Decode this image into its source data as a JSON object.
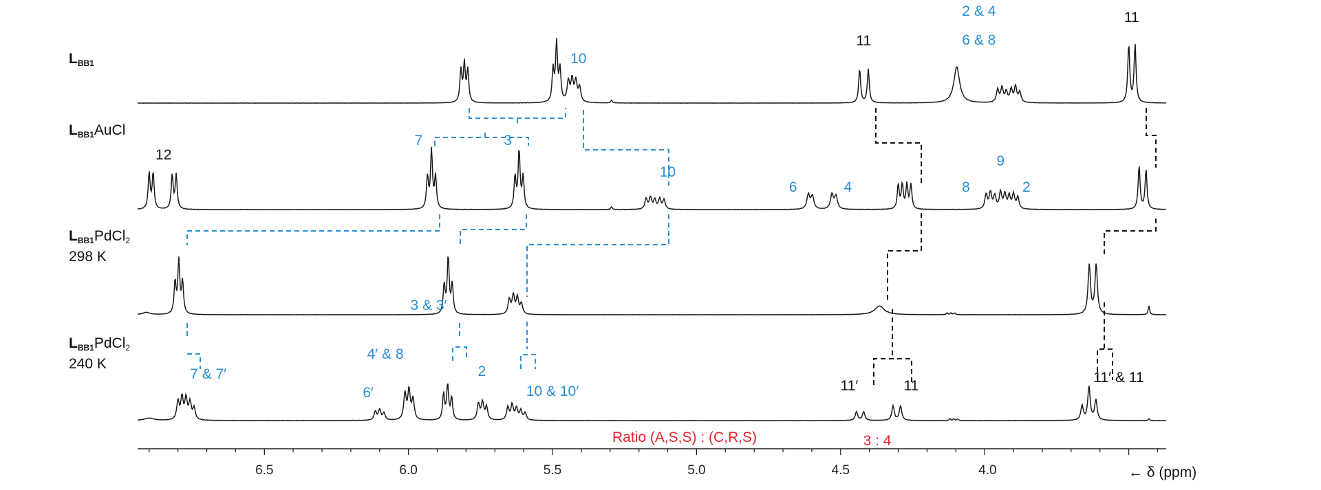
{
  "chart_data": {
    "type": "line",
    "title": "",
    "xlabel": "← δ (ppm)",
    "ylabel": "",
    "x_reversed": true,
    "xlim": [
      6.94,
      3.37
    ],
    "x_ticks": [
      "6.5",
      "6.0",
      "5.5",
      "5.0",
      "4.5",
      "4.0"
    ],
    "x_tick_values": [
      6.5,
      6.0,
      5.5,
      5.0,
      4.5,
      3.99
    ],
    "colors": {
      "trace": "#1a1a1a",
      "blue": "#2a8fd6",
      "black": "#111111",
      "red": "#e2242d"
    },
    "series": [
      {
        "name": "LBB1",
        "label_bold": "L",
        "label_sub": "BB1",
        "label_rest": "",
        "label_sub2": "",
        "label_temp": "",
        "peaks": [
          {
            "ppm": 5.818,
            "h": 0.55,
            "w": 0.004
          },
          {
            "ppm": 5.806,
            "h": 0.65,
            "w": 0.004
          },
          {
            "ppm": 5.794,
            "h": 0.55,
            "w": 0.004
          },
          {
            "ppm": 5.498,
            "h": 0.55,
            "w": 0.004
          },
          {
            "ppm": 5.486,
            "h": 1.0,
            "w": 0.004
          },
          {
            "ppm": 5.474,
            "h": 0.55,
            "w": 0.004
          },
          {
            "ppm": 5.445,
            "h": 0.35,
            "w": 0.005
          },
          {
            "ppm": 5.432,
            "h": 0.38,
            "w": 0.005
          },
          {
            "ppm": 5.419,
            "h": 0.35,
            "w": 0.005
          },
          {
            "ppm": 5.406,
            "h": 0.25,
            "w": 0.005
          },
          {
            "ppm": 5.295,
            "h": 0.05,
            "w": 0.003
          },
          {
            "ppm": 4.434,
            "h": 0.58,
            "w": 0.004
          },
          {
            "ppm": 4.404,
            "h": 0.58,
            "w": 0.004
          },
          {
            "ppm": 4.097,
            "h": 0.62,
            "w": 0.012
          },
          {
            "ppm": 3.955,
            "h": 0.22,
            "w": 0.005
          },
          {
            "ppm": 3.94,
            "h": 0.25,
            "w": 0.005
          },
          {
            "ppm": 3.925,
            "h": 0.18,
            "w": 0.005
          },
          {
            "ppm": 3.908,
            "h": 0.22,
            "w": 0.005
          },
          {
            "ppm": 3.893,
            "h": 0.27,
            "w": 0.005
          },
          {
            "ppm": 3.878,
            "h": 0.18,
            "w": 0.005
          },
          {
            "ppm": 3.5,
            "h": 1.0,
            "w": 0.004
          },
          {
            "ppm": 3.478,
            "h": 1.0,
            "w": 0.004
          }
        ]
      },
      {
        "name": "LBB1AuCl",
        "label_bold": "L",
        "label_sub": "BB1",
        "label_rest": "AuCl",
        "label_sub2": "",
        "label_temp": "",
        "peaks": [
          {
            "ppm": 6.9,
            "h": 0.62,
            "w": 0.004
          },
          {
            "ppm": 6.886,
            "h": 0.62,
            "w": 0.004
          },
          {
            "ppm": 6.82,
            "h": 0.58,
            "w": 0.004
          },
          {
            "ppm": 6.806,
            "h": 0.58,
            "w": 0.004
          },
          {
            "ppm": 5.934,
            "h": 0.55,
            "w": 0.004
          },
          {
            "ppm": 5.92,
            "h": 1.0,
            "w": 0.004
          },
          {
            "ppm": 5.906,
            "h": 0.55,
            "w": 0.004
          },
          {
            "ppm": 5.63,
            "h": 0.55,
            "w": 0.004
          },
          {
            "ppm": 5.616,
            "h": 1.0,
            "w": 0.004
          },
          {
            "ppm": 5.602,
            "h": 0.55,
            "w": 0.004
          },
          {
            "ppm": 5.295,
            "h": 0.05,
            "w": 0.003
          },
          {
            "ppm": 5.175,
            "h": 0.18,
            "w": 0.005
          },
          {
            "ppm": 5.16,
            "h": 0.2,
            "w": 0.005
          },
          {
            "ppm": 5.145,
            "h": 0.16,
            "w": 0.005
          },
          {
            "ppm": 5.128,
            "h": 0.18,
            "w": 0.005
          },
          {
            "ppm": 5.113,
            "h": 0.16,
            "w": 0.005
          },
          {
            "ppm": 4.612,
            "h": 0.25,
            "w": 0.006
          },
          {
            "ppm": 4.598,
            "h": 0.22,
            "w": 0.006
          },
          {
            "ppm": 4.53,
            "h": 0.25,
            "w": 0.006
          },
          {
            "ppm": 4.516,
            "h": 0.22,
            "w": 0.006
          },
          {
            "ppm": 4.3,
            "h": 0.42,
            "w": 0.004
          },
          {
            "ppm": 4.286,
            "h": 0.42,
            "w": 0.004
          },
          {
            "ppm": 4.27,
            "h": 0.42,
            "w": 0.004
          },
          {
            "ppm": 4.256,
            "h": 0.42,
            "w": 0.004
          },
          {
            "ppm": 3.995,
            "h": 0.25,
            "w": 0.005
          },
          {
            "ppm": 3.98,
            "h": 0.28,
            "w": 0.005
          },
          {
            "ppm": 3.965,
            "h": 0.22,
            "w": 0.005
          },
          {
            "ppm": 3.945,
            "h": 0.28,
            "w": 0.005
          },
          {
            "ppm": 3.93,
            "h": 0.25,
            "w": 0.005
          },
          {
            "ppm": 3.915,
            "h": 0.22,
            "w": 0.005
          },
          {
            "ppm": 3.9,
            "h": 0.25,
            "w": 0.005
          },
          {
            "ppm": 3.885,
            "h": 0.2,
            "w": 0.005
          },
          {
            "ppm": 3.464,
            "h": 0.75,
            "w": 0.004
          },
          {
            "ppm": 3.44,
            "h": 0.68,
            "w": 0.004
          }
        ]
      },
      {
        "name": "LBB1PdCl2 298 K",
        "label_bold": "L",
        "label_sub": "BB1",
        "label_rest": "PdCl",
        "label_sub2": "2",
        "label_temp": "298 K",
        "peaks": [
          {
            "ppm": 6.91,
            "h": 0.04,
            "w": 0.015
          },
          {
            "ppm": 6.81,
            "h": 0.55,
            "w": 0.004
          },
          {
            "ppm": 6.797,
            "h": 0.9,
            "w": 0.004
          },
          {
            "ppm": 6.784,
            "h": 0.55,
            "w": 0.004
          },
          {
            "ppm": 5.876,
            "h": 0.5,
            "w": 0.004
          },
          {
            "ppm": 5.862,
            "h": 0.98,
            "w": 0.004
          },
          {
            "ppm": 5.848,
            "h": 0.5,
            "w": 0.004
          },
          {
            "ppm": 5.65,
            "h": 0.25,
            "w": 0.005
          },
          {
            "ppm": 5.636,
            "h": 0.32,
            "w": 0.005
          },
          {
            "ppm": 5.622,
            "h": 0.28,
            "w": 0.005
          },
          {
            "ppm": 5.608,
            "h": 0.18,
            "w": 0.005
          },
          {
            "ppm": 4.365,
            "h": 0.15,
            "w": 0.02
          },
          {
            "ppm": 4.13,
            "h": 0.03,
            "w": 0.003
          },
          {
            "ppm": 4.117,
            "h": 0.03,
            "w": 0.003
          },
          {
            "ppm": 4.104,
            "h": 0.03,
            "w": 0.003
          },
          {
            "ppm": 3.637,
            "h": 0.85,
            "w": 0.005
          },
          {
            "ppm": 3.613,
            "h": 0.85,
            "w": 0.005
          },
          {
            "ppm": 3.43,
            "h": 0.15,
            "w": 0.003
          }
        ]
      },
      {
        "name": "LBB1PdCl2 240 K",
        "label_bold": "L",
        "label_sub": "BB1",
        "label_rest": "PdCl",
        "label_sub2": "2",
        "label_temp": "240 K",
        "peaks": [
          {
            "ppm": 6.9,
            "h": 0.04,
            "w": 0.02
          },
          {
            "ppm": 6.8,
            "h": 0.32,
            "w": 0.005
          },
          {
            "ppm": 6.786,
            "h": 0.38,
            "w": 0.005
          },
          {
            "ppm": 6.772,
            "h": 0.36,
            "w": 0.005
          },
          {
            "ppm": 6.758,
            "h": 0.3,
            "w": 0.005
          },
          {
            "ppm": 6.744,
            "h": 0.2,
            "w": 0.005
          },
          {
            "ppm": 6.115,
            "h": 0.15,
            "w": 0.005
          },
          {
            "ppm": 6.1,
            "h": 0.18,
            "w": 0.005
          },
          {
            "ppm": 6.085,
            "h": 0.12,
            "w": 0.005
          },
          {
            "ppm": 6.012,
            "h": 0.45,
            "w": 0.005
          },
          {
            "ppm": 5.998,
            "h": 0.5,
            "w": 0.005
          },
          {
            "ppm": 5.984,
            "h": 0.35,
            "w": 0.005
          },
          {
            "ppm": 5.878,
            "h": 0.45,
            "w": 0.004
          },
          {
            "ppm": 5.864,
            "h": 0.6,
            "w": 0.004
          },
          {
            "ppm": 5.85,
            "h": 0.38,
            "w": 0.004
          },
          {
            "ppm": 5.757,
            "h": 0.28,
            "w": 0.005
          },
          {
            "ppm": 5.743,
            "h": 0.3,
            "w": 0.005
          },
          {
            "ppm": 5.729,
            "h": 0.22,
            "w": 0.005
          },
          {
            "ppm": 5.655,
            "h": 0.22,
            "w": 0.005
          },
          {
            "ppm": 5.64,
            "h": 0.26,
            "w": 0.005
          },
          {
            "ppm": 5.625,
            "h": 0.2,
            "w": 0.005
          },
          {
            "ppm": 5.61,
            "h": 0.16,
            "w": 0.005
          },
          {
            "ppm": 5.595,
            "h": 0.12,
            "w": 0.005
          },
          {
            "ppm": 4.445,
            "h": 0.15,
            "w": 0.005
          },
          {
            "ppm": 4.42,
            "h": 0.15,
            "w": 0.005
          },
          {
            "ppm": 4.318,
            "h": 0.25,
            "w": 0.005
          },
          {
            "ppm": 4.292,
            "h": 0.25,
            "w": 0.005
          },
          {
            "ppm": 4.12,
            "h": 0.03,
            "w": 0.003
          },
          {
            "ppm": 4.107,
            "h": 0.03,
            "w": 0.003
          },
          {
            "ppm": 4.094,
            "h": 0.03,
            "w": 0.003
          },
          {
            "ppm": 3.662,
            "h": 0.25,
            "w": 0.005
          },
          {
            "ppm": 3.638,
            "h": 0.58,
            "w": 0.005
          },
          {
            "ppm": 3.614,
            "h": 0.35,
            "w": 0.005
          },
          {
            "ppm": 3.43,
            "h": 0.03,
            "w": 0.003
          }
        ]
      }
    ],
    "annotations": [
      {
        "text": "10",
        "color": "blue",
        "ppm": 5.41,
        "row": 0,
        "dy": -58
      },
      {
        "text": "11",
        "color": "black",
        "ppm": 4.42,
        "row": 0,
        "dy": -84
      },
      {
        "text": "2 & 4",
        "color": "blue",
        "ppm": 4.02,
        "row": 0,
        "dy": -127
      },
      {
        "text": "6 & 8",
        "color": "blue",
        "ppm": 4.02,
        "row": 0,
        "dy": -85
      },
      {
        "text": "11",
        "color": "black",
        "ppm": 3.49,
        "row": 0,
        "dy": -118
      },
      {
        "text": "12",
        "color": "black",
        "ppm": 6.85,
        "row": 1,
        "dy": -73
      },
      {
        "text": "7",
        "color": "blue",
        "ppm": 5.965,
        "row": 1,
        "dy": -94
      },
      {
        "text": "3",
        "color": "blue",
        "ppm": 5.655,
        "row": 1,
        "dy": -94
      },
      {
        "text": "10",
        "color": "blue",
        "ppm": 5.1,
        "row": 1,
        "dy": -48
      },
      {
        "text": "6",
        "color": "blue",
        "ppm": 4.665,
        "row": 1,
        "dy": -26
      },
      {
        "text": "4",
        "color": "blue",
        "ppm": 4.475,
        "row": 1,
        "dy": -26
      },
      {
        "text": "8",
        "color": "blue",
        "ppm": 4.065,
        "row": 1,
        "dy": -26
      },
      {
        "text": "9",
        "color": "blue",
        "ppm": 3.945,
        "row": 1,
        "dy": -64
      },
      {
        "text": "2",
        "color": "blue",
        "ppm": 3.855,
        "row": 1,
        "dy": -26
      },
      {
        "text": "3 & 3′",
        "color": "blue",
        "ppm": 5.93,
        "row": 3,
        "dy": -161
      },
      {
        "text": "7 & 7′",
        "color": "blue",
        "ppm": 6.695,
        "row": 3,
        "dy": -61
      },
      {
        "text": "4′ & 8",
        "color": "blue",
        "ppm": 6.08,
        "row": 3,
        "dy": -90
      },
      {
        "text": "6′",
        "color": "blue",
        "ppm": 6.14,
        "row": 3,
        "dy": -34
      },
      {
        "text": "2",
        "color": "blue",
        "ppm": 5.745,
        "row": 3,
        "dy": -65
      },
      {
        "text": "10 & 10′",
        "color": "blue",
        "ppm": 5.5,
        "row": 3,
        "dy": -36
      },
      {
        "text": "11′",
        "color": "black",
        "ppm": 4.47,
        "row": 3,
        "dy": -44
      },
      {
        "text": "11",
        "color": "black",
        "ppm": 4.255,
        "row": 3,
        "dy": -44
      },
      {
        "text": "11′ & 11",
        "color": "black",
        "ppm": 3.535,
        "row": 3,
        "dy": -56
      }
    ],
    "ratio_label": "Ratio (A,S,S) : (C,R,S)",
    "ratio_value": "3 : 4"
  }
}
